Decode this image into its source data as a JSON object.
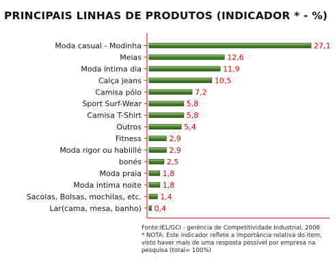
{
  "chart_data": {
    "type": "bar",
    "orientation": "horizontal",
    "title": "PRINCIPAIS LINHAS DE PRODUTOS (INDICADOR * - %)",
    "categories": [
      "Moda casual - Modinha",
      "Meias",
      "Moda íntima dia",
      "Calça jeans",
      "Camisa pólo",
      "Sport Surf-Wear",
      "Camisa T-Shirt",
      "Outros",
      "Fitness",
      "Moda rigor ou hablillé",
      "bonés",
      "Moda praia",
      "Moda íntima noite",
      "Sacolas, Bolsas, mochilas, etc.",
      "Lar(cama, mesa, banho)"
    ],
    "values": [
      27.1,
      12.6,
      11.9,
      10.5,
      7.2,
      5.8,
      5.8,
      5.4,
      2.9,
      2.9,
      2.5,
      1.8,
      1.8,
      1.4,
      0.4
    ],
    "value_labels": [
      "27,1",
      "12,6",
      "11,9",
      "10,5",
      "7,2",
      "5,8",
      "5,8",
      "5,4",
      "2,9",
      "2,9",
      "2,5",
      "1,8",
      "1,8",
      "1,4",
      "0,4"
    ],
    "xlim": [
      0,
      27.1
    ],
    "grid": false,
    "legend": "none",
    "colors": {
      "bar": "#4e8a2e",
      "bar_highlight": "#a9cf8a",
      "bar_border": "#2f5a1b",
      "label": "#e00000",
      "axis": "#cc0000"
    }
  },
  "notes": {
    "source": "Fonte:IEL/GCI - gerência de Competitividade Industrial, 2008",
    "note": "* NOTA: Este indicador reflete a importância relativa do item, visto haver mais de uma resposta possível por empresa na pesquisa (total= 100%)"
  }
}
